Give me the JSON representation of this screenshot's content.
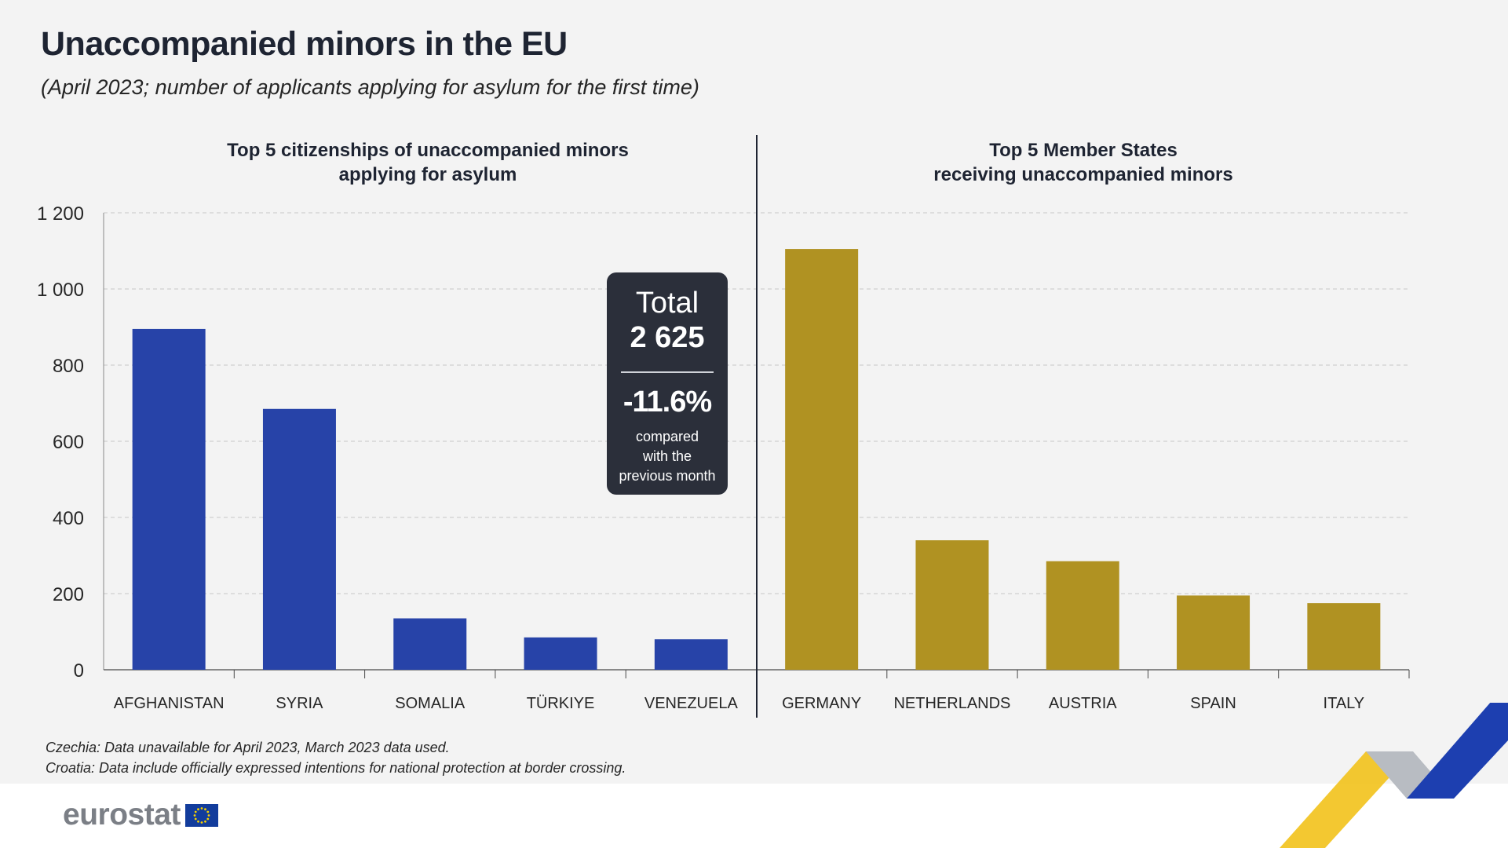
{
  "header": {
    "title": "Unaccompanied minors in the EU",
    "subtitle": "(April 2023; number of applicants applying for asylum for the first time)"
  },
  "sections": {
    "left_title": [
      "Top 5 citizenships of unaccompanied minors",
      "applying for asylum"
    ],
    "right_title": [
      "Top 5 Member States",
      "receiving unaccompanied minors"
    ]
  },
  "summary": {
    "total_label": "Total",
    "total_value": "2 625",
    "change_value": "-11.6%",
    "change_note": [
      "compared",
      "with the",
      "previous month"
    ]
  },
  "notes": [
    "Czechia: Data unavailable for April 2023, March 2023 data used.",
    "Croatia: Data include officially expressed intentions for national protection at border crossing."
  ],
  "brand": {
    "logo": "eurostat",
    "flag_icon": "eu-flag-icon"
  },
  "colors": {
    "citizenships": "#2743a8",
    "member_states": "#b09222",
    "panel_bg": "#f3f3f3",
    "total_box": "#2b2f3a"
  },
  "chart_data": {
    "type": "bar",
    "ylim": [
      0,
      1200
    ],
    "yticks": [
      0,
      200,
      400,
      600,
      800,
      1000,
      1200
    ],
    "ytick_labels": [
      "0",
      "200",
      "400",
      "600",
      "800",
      "1 000",
      "1 200"
    ],
    "grid": true,
    "categories": [
      "AFGHANISTAN",
      "SYRIA",
      "SOMALIA",
      "TÜRKIYE",
      "VENEZUELA",
      "GERMANY",
      "NETHERLANDS",
      "AUSTRIA",
      "SPAIN",
      "ITALY"
    ],
    "series": [
      {
        "values": [
          895,
          685,
          135,
          85,
          80,
          null,
          null,
          null,
          null,
          null
        ]
      },
      {
        "values": [
          null,
          null,
          null,
          null,
          null,
          1105,
          340,
          285,
          195,
          175
        ]
      }
    ]
  }
}
